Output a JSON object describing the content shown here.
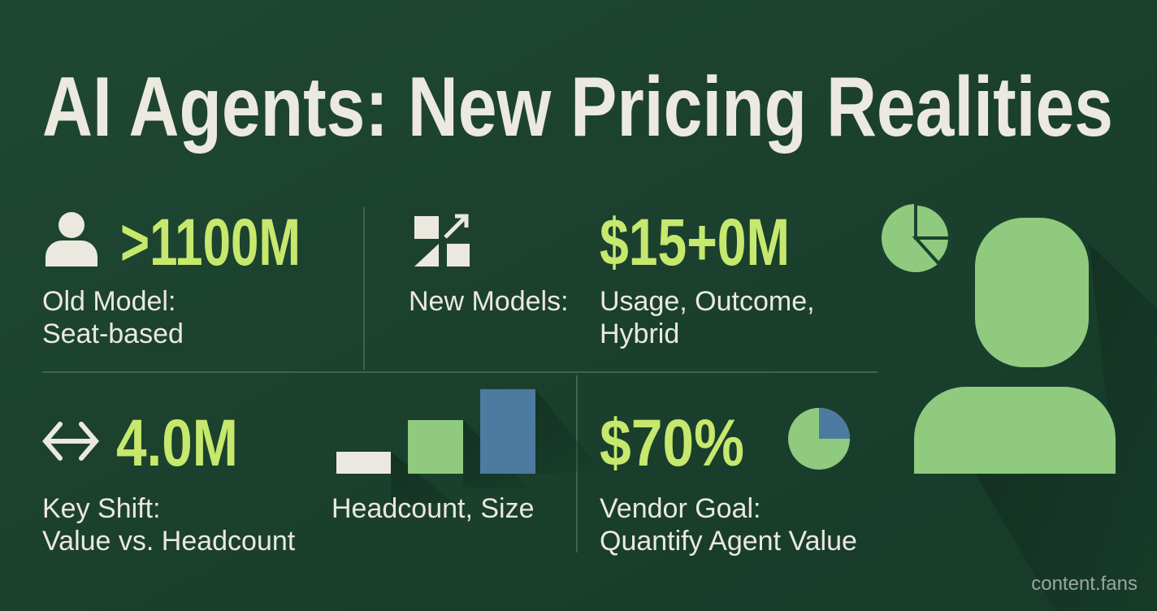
{
  "header": {
    "title": "AI Agents: New Pricing Realities"
  },
  "stats": [
    {
      "value": ">1100M",
      "label": [
        "Old Model:",
        "Seat-based"
      ]
    },
    {
      "value": "$15+0M",
      "prefix": "New Models:",
      "label": [
        "Usage, Outcome,",
        "Hybrid"
      ]
    },
    {
      "value": "4.0M",
      "label": [
        "Key Shift:",
        "Value vs. Headcount"
      ],
      "chart_label": "Headcount, Size"
    },
    {
      "value": "$70%",
      "label": [
        "Vendor Goal:",
        "Quantify Agent Value"
      ]
    }
  ],
  "footer": {
    "brand": "content.fans"
  }
}
